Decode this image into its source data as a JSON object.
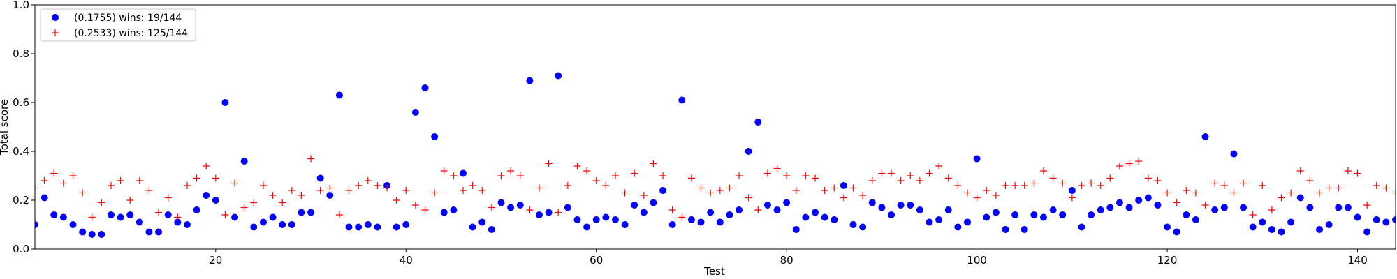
{
  "chart_data": {
    "type": "scatter",
    "title": "",
    "xlabel": "Test",
    "ylabel": "Total score",
    "xlim": [
      1,
      144
    ],
    "ylim": [
      0.0,
      1.0
    ],
    "x_ticks": [
      20,
      40,
      60,
      80,
      100,
      120,
      140
    ],
    "x_tick_labels": [
      "20",
      "40",
      "60",
      "80",
      "100",
      "120",
      "140"
    ],
    "y_ticks": [
      0.0,
      0.2,
      0.4,
      0.6,
      0.8,
      1.0
    ],
    "y_tick_labels": [
      "0.0",
      "0.2",
      "0.4",
      "0.6",
      "0.8",
      "1.0"
    ],
    "grid": false,
    "legend_position": "top-left",
    "series": [
      {
        "name": "(0.1755) wins: 19/144",
        "marker": "circle",
        "color": "#0000ff",
        "x": [
          1,
          2,
          3,
          4,
          5,
          6,
          7,
          8,
          9,
          10,
          11,
          12,
          13,
          14,
          15,
          16,
          17,
          18,
          19,
          20,
          21,
          22,
          23,
          24,
          25,
          26,
          27,
          28,
          29,
          30,
          31,
          32,
          33,
          34,
          35,
          36,
          37,
          38,
          39,
          40,
          41,
          42,
          43,
          44,
          45,
          46,
          47,
          48,
          49,
          50,
          51,
          52,
          53,
          54,
          55,
          56,
          57,
          58,
          59,
          60,
          61,
          62,
          63,
          64,
          65,
          66,
          67,
          68,
          69,
          70,
          71,
          72,
          73,
          74,
          75,
          76,
          77,
          78,
          79,
          80,
          81,
          82,
          83,
          84,
          85,
          86,
          87,
          88,
          89,
          90,
          91,
          92,
          93,
          94,
          95,
          96,
          97,
          98,
          99,
          100,
          101,
          102,
          103,
          104,
          105,
          106,
          107,
          108,
          109,
          110,
          111,
          112,
          113,
          114,
          115,
          116,
          117,
          118,
          119,
          120,
          121,
          122,
          123,
          124,
          125,
          126,
          127,
          128,
          129,
          130,
          131,
          132,
          133,
          134,
          135,
          136,
          137,
          138,
          139,
          140,
          141,
          142,
          143,
          144
        ],
        "y": [
          0.1,
          0.21,
          0.14,
          0.13,
          0.1,
          0.07,
          0.06,
          0.06,
          0.14,
          0.13,
          0.14,
          0.11,
          0.07,
          0.07,
          0.14,
          0.11,
          0.1,
          0.16,
          0.22,
          0.2,
          0.6,
          0.13,
          0.36,
          0.09,
          0.11,
          0.13,
          0.1,
          0.1,
          0.15,
          0.15,
          0.29,
          0.22,
          0.63,
          0.09,
          0.09,
          0.1,
          0.09,
          0.26,
          0.09,
          0.1,
          0.56,
          0.66,
          0.46,
          0.15,
          0.16,
          0.31,
          0.09,
          0.11,
          0.08,
          0.19,
          0.17,
          0.18,
          0.69,
          0.14,
          0.15,
          0.71,
          0.17,
          0.12,
          0.09,
          0.12,
          0.13,
          0.12,
          0.1,
          0.18,
          0.15,
          0.19,
          0.24,
          0.1,
          0.61,
          0.12,
          0.11,
          0.15,
          0.11,
          0.14,
          0.16,
          0.4,
          0.52,
          0.18,
          0.16,
          0.19,
          0.08,
          0.13,
          0.15,
          0.13,
          0.12,
          0.26,
          0.1,
          0.09,
          0.19,
          0.17,
          0.14,
          0.18,
          0.18,
          0.16,
          0.11,
          0.12,
          0.16,
          0.09,
          0.11,
          0.37,
          0.13,
          0.15,
          0.08,
          0.14,
          0.08,
          0.14,
          0.13,
          0.16,
          0.14,
          0.24,
          0.09,
          0.14,
          0.16,
          0.17,
          0.19,
          0.17,
          0.2,
          0.21,
          0.18,
          0.09,
          0.07,
          0.14,
          0.12,
          0.46,
          0.16,
          0.17,
          0.39,
          0.17,
          0.09,
          0.11,
          0.08,
          0.07,
          0.11,
          0.21,
          0.17,
          0.08,
          0.1,
          0.17,
          0.17,
          0.13,
          0.07,
          0.12,
          0.11,
          0.12
        ]
      },
      {
        "name": "(0.2533) wins: 125/144",
        "marker": "plus",
        "color": "#ff0000",
        "x": [
          1,
          2,
          3,
          4,
          5,
          6,
          7,
          8,
          9,
          10,
          11,
          12,
          13,
          14,
          15,
          16,
          17,
          18,
          19,
          20,
          21,
          22,
          23,
          24,
          25,
          26,
          27,
          28,
          29,
          30,
          31,
          32,
          33,
          34,
          35,
          36,
          37,
          38,
          39,
          40,
          41,
          42,
          43,
          44,
          45,
          46,
          47,
          48,
          49,
          50,
          51,
          52,
          53,
          54,
          55,
          56,
          57,
          58,
          59,
          60,
          61,
          62,
          63,
          64,
          65,
          66,
          67,
          68,
          69,
          70,
          71,
          72,
          73,
          74,
          75,
          76,
          77,
          78,
          79,
          80,
          81,
          82,
          83,
          84,
          85,
          86,
          87,
          88,
          89,
          90,
          91,
          92,
          93,
          94,
          95,
          96,
          97,
          98,
          99,
          100,
          101,
          102,
          103,
          104,
          105,
          106,
          107,
          108,
          109,
          110,
          111,
          112,
          113,
          114,
          115,
          116,
          117,
          118,
          119,
          120,
          121,
          122,
          123,
          124,
          125,
          126,
          127,
          128,
          129,
          130,
          131,
          132,
          133,
          134,
          135,
          136,
          137,
          138,
          139,
          140,
          141,
          142,
          143,
          144
        ],
        "y": [
          0.25,
          0.28,
          0.31,
          0.27,
          0.3,
          0.23,
          0.13,
          0.19,
          0.26,
          0.28,
          0.2,
          0.28,
          0.24,
          0.15,
          0.21,
          0.13,
          0.26,
          0.29,
          0.34,
          0.29,
          0.14,
          0.27,
          0.17,
          0.19,
          0.26,
          0.22,
          0.19,
          0.24,
          0.22,
          0.37,
          0.24,
          0.25,
          0.14,
          0.24,
          0.26,
          0.28,
          0.26,
          0.25,
          0.2,
          0.24,
          0.18,
          0.16,
          0.23,
          0.32,
          0.3,
          0.24,
          0.26,
          0.24,
          0.17,
          0.3,
          0.32,
          0.3,
          0.16,
          0.25,
          0.35,
          0.15,
          0.26,
          0.34,
          0.32,
          0.28,
          0.26,
          0.3,
          0.23,
          0.31,
          0.22,
          0.35,
          0.3,
          0.16,
          0.13,
          0.29,
          0.25,
          0.23,
          0.24,
          0.25,
          0.3,
          0.21,
          0.16,
          0.31,
          0.33,
          0.3,
          0.24,
          0.3,
          0.29,
          0.24,
          0.25,
          0.21,
          0.25,
          0.22,
          0.28,
          0.31,
          0.31,
          0.28,
          0.3,
          0.28,
          0.31,
          0.34,
          0.29,
          0.26,
          0.23,
          0.21,
          0.24,
          0.22,
          0.26,
          0.26,
          0.26,
          0.27,
          0.32,
          0.29,
          0.27,
          0.21,
          0.26,
          0.27,
          0.26,
          0.29,
          0.34,
          0.35,
          0.36,
          0.29,
          0.28,
          0.23,
          0.19,
          0.24,
          0.23,
          0.18,
          0.27,
          0.26,
          0.23,
          0.27,
          0.14,
          0.26,
          0.16,
          0.21,
          0.23,
          0.32,
          0.28,
          0.23,
          0.25,
          0.25,
          0.32,
          0.31,
          0.18,
          0.26,
          0.25,
          0.23
        ]
      }
    ]
  }
}
